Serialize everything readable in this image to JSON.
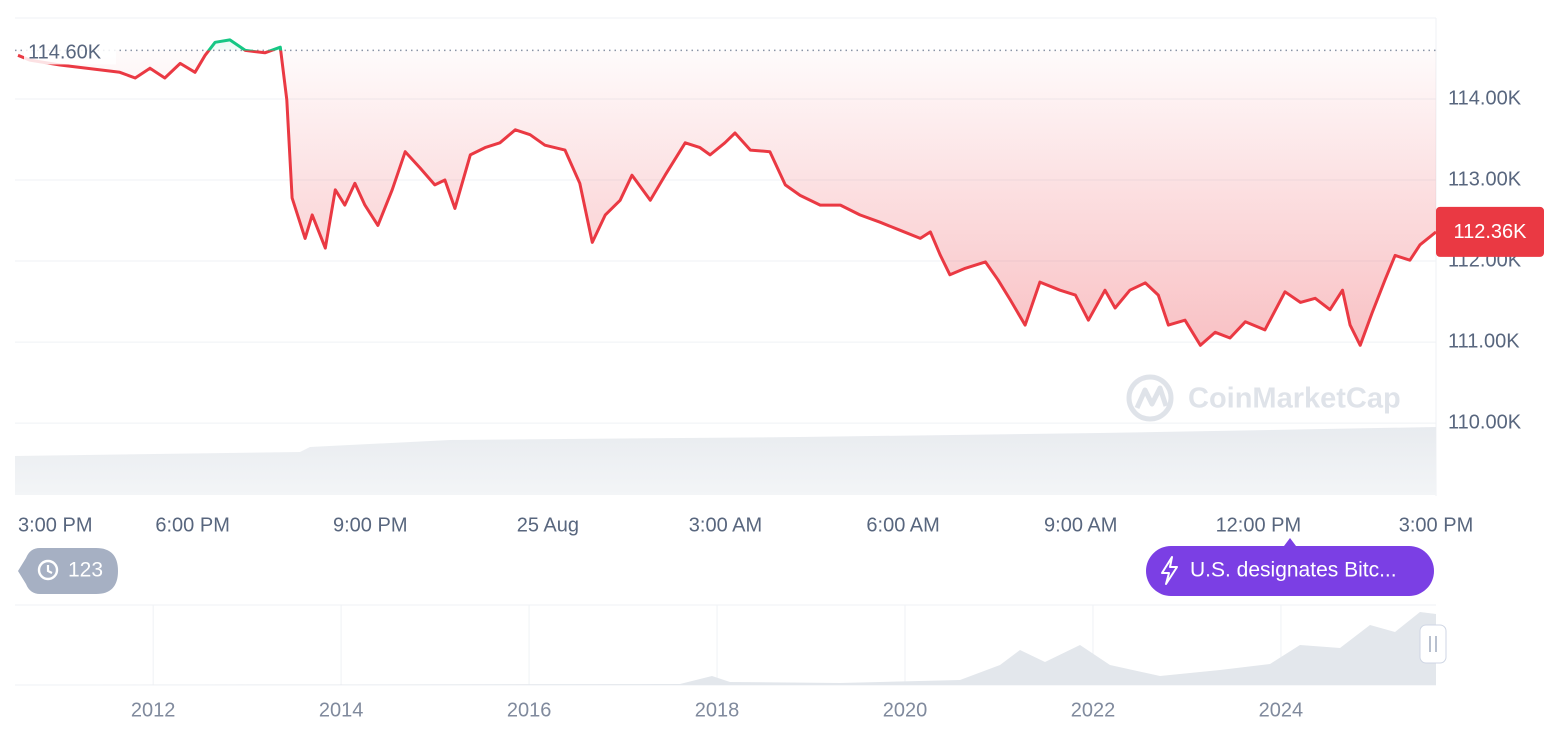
{
  "chart_data": {
    "type": "line",
    "x": [
      0.05,
      0.25,
      0.76,
      1.77,
      2.03,
      2.28,
      2.53,
      2.79,
      3.04,
      3.21,
      3.38,
      3.63,
      3.89,
      4.22,
      4.48,
      4.59,
      4.68,
      4.9,
      5.02,
      5.24,
      5.41,
      5.57,
      5.74,
      5.91,
      6.13,
      6.37,
      6.59,
      6.84,
      7.09,
      7.26,
      7.43,
      7.69,
      7.94,
      8.19,
      8.45,
      8.7,
      8.95,
      9.29,
      9.54,
      9.75,
      9.97,
      10.22,
      10.42,
      10.73,
      10.98,
      11.32,
      11.57,
      11.74,
      11.99,
      12.16,
      12.42,
      12.75,
      13.01,
      13.26,
      13.6,
      13.94,
      14.27,
      14.61,
      14.95,
      15.29,
      15.46,
      15.63,
      15.79,
      16.05,
      16.39,
      16.6,
      16.81,
      17.06,
      17.31,
      17.65,
      17.91,
      18.13,
      18.41,
      18.58,
      18.83,
      19.09,
      19.31,
      19.48,
      19.76,
      20.02,
      20.27,
      20.52,
      20.78,
      21.11,
      21.45,
      21.71,
      21.96,
      22.21,
      22.42,
      22.55,
      22.72,
      22.92,
      23.14,
      23.31,
      23.56,
      23.73,
      24
    ],
    "values": [
      114540,
      114480,
      114420,
      114330,
      114260,
      114380,
      114260,
      114440,
      114330,
      114540,
      114700,
      114730,
      114600,
      114570,
      114640,
      113990,
      112780,
      112280,
      112570,
      112160,
      112880,
      112690,
      112960,
      112690,
      112440,
      112880,
      113350,
      113150,
      112940,
      113000,
      112650,
      113310,
      113400,
      113460,
      113620,
      113560,
      113430,
      113370,
      112960,
      112230,
      112570,
      112750,
      113060,
      112750,
      113060,
      113460,
      113400,
      113310,
      113460,
      113580,
      113370,
      113350,
      112940,
      112810,
      112690,
      112690,
      112570,
      112480,
      112380,
      112280,
      112360,
      112070,
      111830,
      111910,
      111990,
      111770,
      111520,
      111210,
      111740,
      111640,
      111580,
      111270,
      111640,
      111420,
      111640,
      111730,
      111580,
      111210,
      111270,
      110960,
      111120,
      111050,
      111250,
      111150,
      111620,
      111490,
      111540,
      111400,
      111640,
      111210,
      110960,
      111360,
      111770,
      112070,
      112010,
      112200,
      112360
    ],
    "colors": {
      "up": "#16c784",
      "down": "#ea3943"
    },
    "xlim": [
      0,
      24
    ],
    "xticks": [
      {
        "value": 0,
        "label": "3:00 PM"
      },
      {
        "value": 3,
        "label": "6:00 PM"
      },
      {
        "value": 6,
        "label": "9:00 PM"
      },
      {
        "value": 9,
        "label": "25 Aug"
      },
      {
        "value": 12,
        "label": "3:00 AM"
      },
      {
        "value": 15,
        "label": "6:00 AM"
      },
      {
        "value": 18,
        "label": "9:00 AM"
      },
      {
        "value": 21,
        "label": "12:00 PM"
      },
      {
        "value": 24,
        "label": "3:00 PM"
      }
    ],
    "ylim": [
      109100,
      115000
    ],
    "yticks": [
      {
        "value": 110000,
        "label": "110.00K"
      },
      {
        "value": 111000,
        "label": "111.00K"
      },
      {
        "value": 112000,
        "label": "112.00K"
      },
      {
        "value": 113000,
        "label": "113.00K"
      },
      {
        "value": 114000,
        "label": "114.00K"
      }
    ],
    "grid": true,
    "reference": {
      "value": 114600,
      "label": "114.60K"
    },
    "current": {
      "value": 112360,
      "label": "112.36K"
    },
    "watermark": "CoinMarketCap",
    "history_count": "123",
    "news": "U.S. designates Bitc...",
    "navigator": {
      "xlim": [
        2010.53,
        2025.65
      ],
      "xticks": [
        2012,
        2014,
        2016,
        2018,
        2020,
        2022,
        2024
      ]
    }
  }
}
